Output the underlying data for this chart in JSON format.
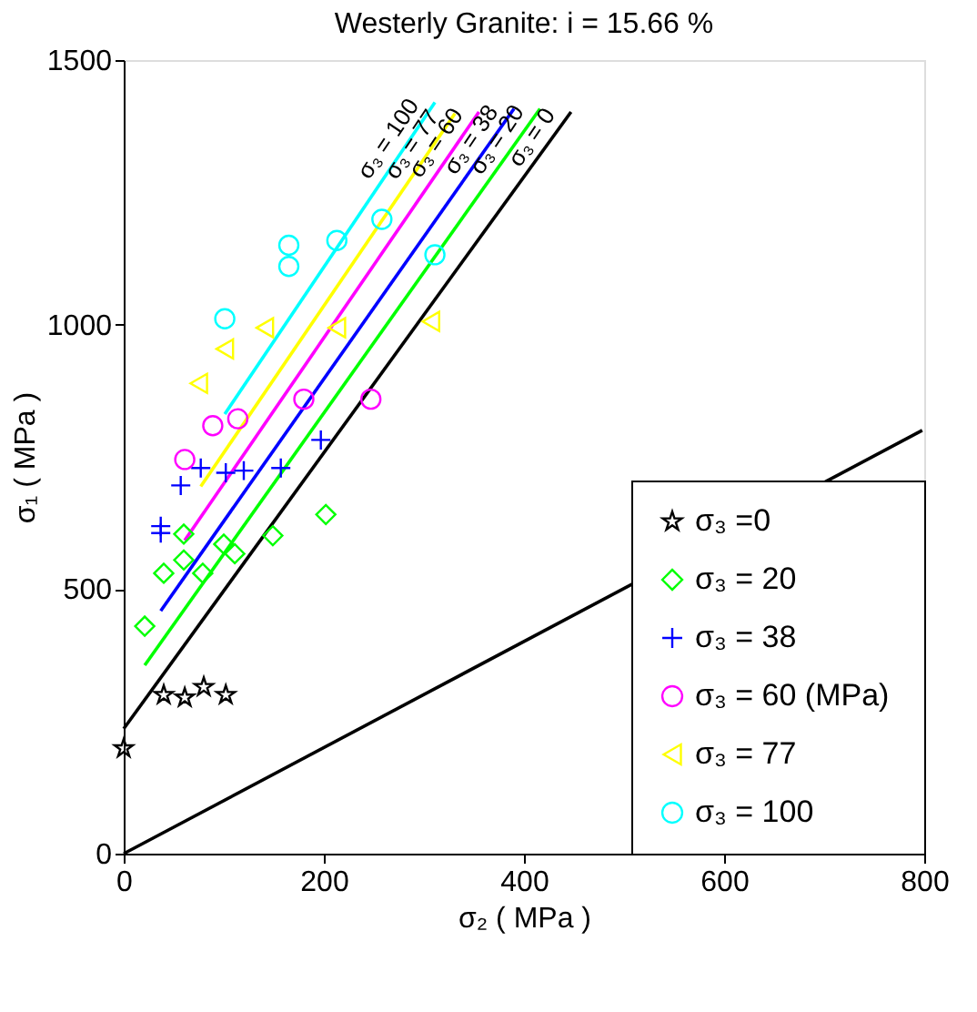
{
  "chart_data": {
    "type": "scatter",
    "title": "Westerly  Granite: i = 15.66 %",
    "xlabel": "σ₂ ( MPa )",
    "ylabel": "σ₁ ( MPa )",
    "xlim": [
      0,
      800
    ],
    "ylim": [
      0,
      1500
    ],
    "xticks": [
      0,
      200,
      400,
      600,
      800
    ],
    "yticks": [
      0,
      500,
      1000,
      1500
    ],
    "grid": false,
    "legend": "bottom right",
    "series": [
      {
        "name": "σ₃ =0",
        "color": "#000000",
        "marker": "star",
        "x": [
          0,
          40,
          61,
          80,
          102
        ],
        "values": [
          199,
          300,
          295,
          315,
          300
        ]
      },
      {
        "name": "σ₃ = 20",
        "color": "#00ff00",
        "marker": "diamond",
        "x": [
          21,
          40,
          60,
          60,
          79,
          100,
          111,
          149,
          202
        ],
        "values": [
          430,
          530,
          604,
          555,
          530,
          585,
          567,
          601,
          641
        ]
      },
      {
        "name": "σ₃ = 38",
        "color": "#0000ff",
        "marker": "cross",
        "x": [
          37,
          37,
          57,
          77,
          102,
          120,
          157,
          197
        ],
        "values": [
          619,
          606,
          696,
          729,
          720,
          724,
          729,
          782
        ]
      },
      {
        "name": "σ₃ = 60  (MPa)",
        "color": "#ff00ff",
        "marker": "circle",
        "x": [
          61,
          89,
          114,
          180,
          247
        ],
        "values": [
          745,
          809,
          822,
          859,
          859
        ]
      },
      {
        "name": "σ₃ = 77",
        "color": "#ffff00",
        "marker": "triangle",
        "x": [
          75,
          101,
          141,
          213,
          307
        ],
        "values": [
          889,
          954,
          994,
          994,
          1006
        ]
      },
      {
        "name": "σ₃ = 100",
        "color": "#00ffff",
        "marker": "circle",
        "x": [
          101,
          165,
          165,
          213,
          258,
          311
        ],
        "values": [
          1011,
          1110,
          1150,
          1159,
          1199,
          1132
        ]
      },
      {
        "type": "line",
        "color": "#000000",
        "x": [
          0,
          447
        ],
        "values": [
          236,
          1402
        ]
      },
      {
        "type": "line",
        "color": "#00ff00",
        "x": [
          21,
          416
        ],
        "values": [
          356,
          1408
        ]
      },
      {
        "type": "line",
        "color": "#0000ff",
        "x": [
          37,
          390
        ],
        "values": [
          459,
          1408
        ]
      },
      {
        "type": "line",
        "color": "#ff00ff",
        "x": [
          61,
          355
        ],
        "values": [
          592,
          1402
        ]
      },
      {
        "type": "line",
        "color": "#ffff00",
        "x": [
          77,
          331
        ],
        "values": [
          694,
          1399
        ]
      },
      {
        "type": "line",
        "color": "#00ffff",
        "x": [
          101,
          311
        ],
        "values": [
          831,
          1420
        ]
      },
      {
        "type": "line",
        "color": "#000000",
        "x": [
          0,
          798
        ],
        "values": [
          0,
          800
        ]
      }
    ],
    "annotations": [
      {
        "text": "σ₃ = 100",
        "x": 311,
        "y": 1420
      },
      {
        "text": "σ₃ = 77",
        "x": 331,
        "y": 1399
      },
      {
        "text": "σ₃ = 60",
        "x": 355,
        "y": 1402
      },
      {
        "text": "σ₃ = 38",
        "x": 390,
        "y": 1408
      },
      {
        "text": "σ₃ = 20",
        "x": 416,
        "y": 1408
      },
      {
        "text": "σ₃ = 0",
        "x": 447,
        "y": 1402
      }
    ]
  }
}
